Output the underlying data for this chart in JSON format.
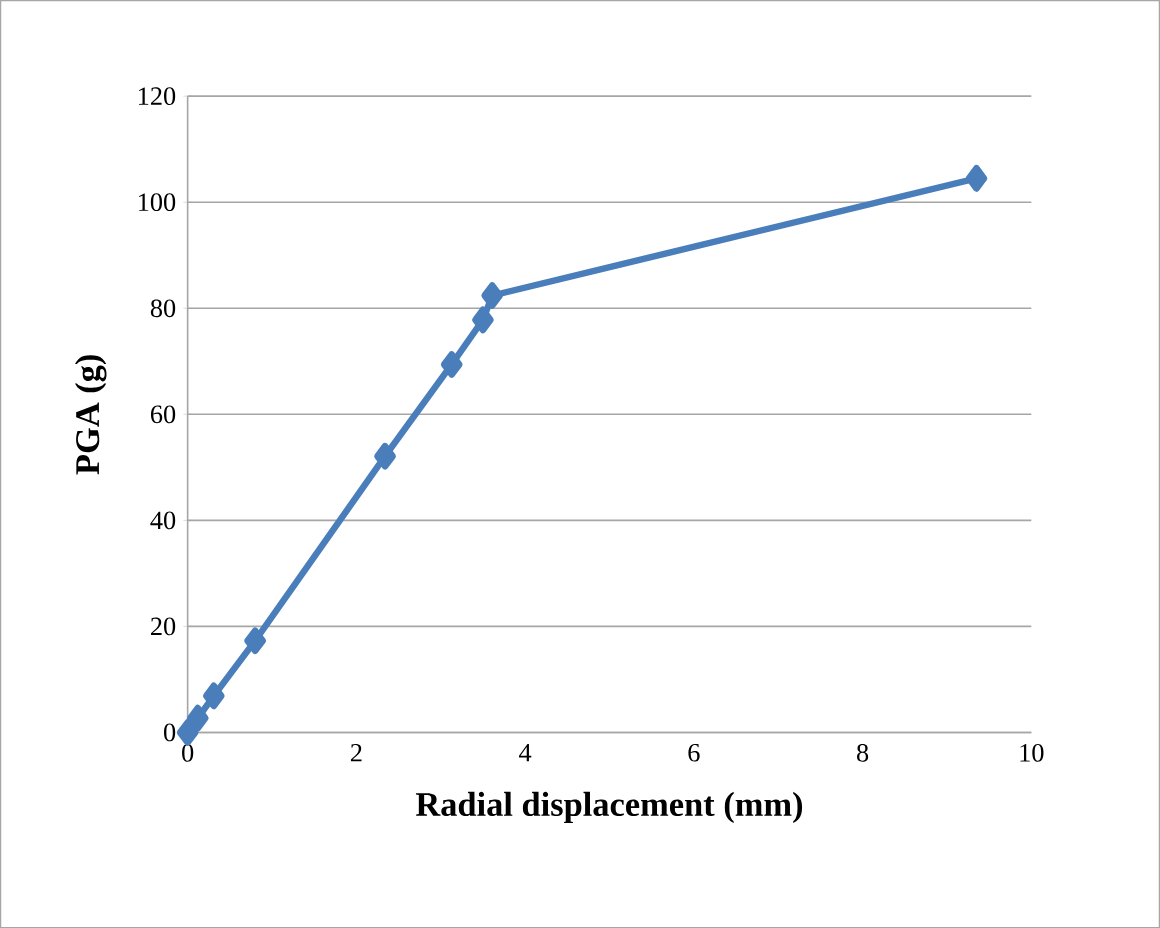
{
  "chart_data": {
    "type": "line",
    "xlabel": "Radial displacement (mm)",
    "ylabel": "PGA (g)",
    "x": [
      0,
      0.12,
      0.31,
      0.8,
      2.34,
      3.13,
      3.5,
      3.61,
      9.35
    ],
    "series": [
      {
        "color": "#4a7ebb",
        "values": [
          0,
          2.7,
          6.9,
          17.3,
          52.1,
          69.4,
          77.8,
          82.4,
          104.5
        ]
      }
    ],
    "xlim": [
      0,
      10
    ],
    "ylim": [
      0,
      120
    ],
    "xticks": [
      0,
      2,
      4,
      6,
      8,
      10
    ],
    "yticks": [
      0,
      20,
      40,
      60,
      80,
      100,
      120
    ],
    "grid": "y",
    "marker": "diamond",
    "line_style": "solid"
  }
}
